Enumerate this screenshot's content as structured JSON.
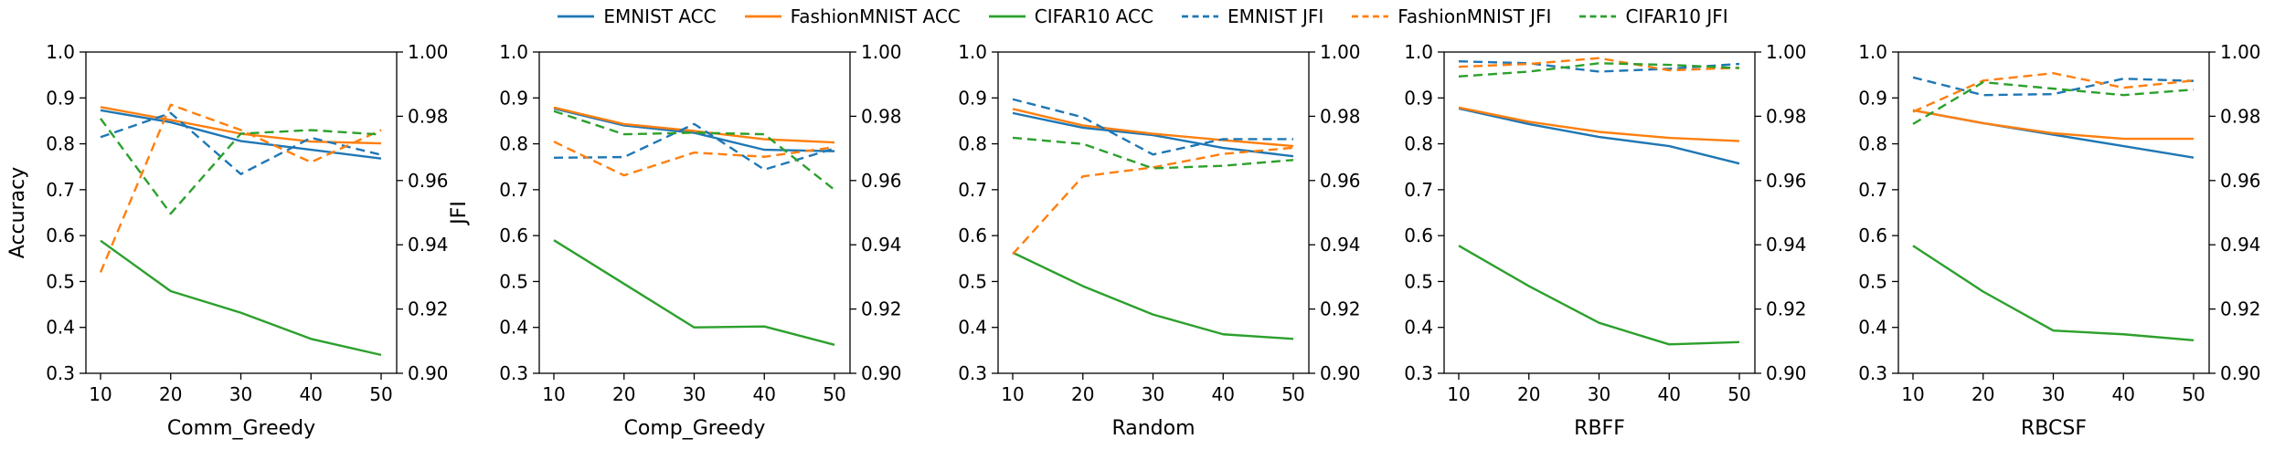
{
  "figure": {
    "background": "#ffffff",
    "colors": {
      "blue": "#1f77b4",
      "orange": "#ff7f0e",
      "green": "#2ca02c"
    }
  },
  "legend": {
    "entries": [
      {
        "label": "EMNIST ACC",
        "color": "#1f77b4",
        "style": "solid"
      },
      {
        "label": "FashionMNIST ACC",
        "color": "#ff7f0e",
        "style": "solid"
      },
      {
        "label": "CIFAR10 ACC",
        "color": "#2ca02c",
        "style": "solid"
      },
      {
        "label": "EMNIST JFI",
        "color": "#1f77b4",
        "style": "dashed"
      },
      {
        "label": "FashionMNIST JFI",
        "color": "#ff7f0e",
        "style": "dashed"
      },
      {
        "label": "CIFAR10 JFI",
        "color": "#2ca02c",
        "style": "dashed"
      }
    ]
  },
  "chart_data": [
    {
      "type": "line",
      "xlabel": "Comm_Greedy",
      "x": [
        10,
        20,
        30,
        40,
        50
      ],
      "x_tick_labels": [
        "10",
        "20",
        "30",
        "40",
        "50"
      ],
      "left_axis": {
        "label": "Accuracy",
        "range": [
          0.3,
          1.0
        ],
        "ticks": [
          "1.0",
          "0.9",
          "0.8",
          "0.7",
          "0.6",
          "0.5",
          "0.4",
          "0.3"
        ]
      },
      "right_axis": {
        "label": "JFI",
        "range": [
          0.9,
          1.0
        ],
        "ticks": [
          "1.00",
          "0.98",
          "0.96",
          "0.94",
          "0.92",
          "0.90"
        ]
      },
      "grid": false,
      "series": [
        {
          "name": "EMNIST ACC",
          "axis": "left",
          "color": "#1f77b4",
          "style": "solid",
          "values": [
            0.873,
            0.847,
            0.806,
            0.787,
            0.768
          ]
        },
        {
          "name": "FashionMNIST ACC",
          "axis": "left",
          "color": "#ff7f0e",
          "style": "solid",
          "values": [
            0.88,
            0.852,
            0.822,
            0.805,
            0.801
          ]
        },
        {
          "name": "CIFAR10 ACC",
          "axis": "left",
          "color": "#2ca02c",
          "style": "solid",
          "values": [
            0.589,
            0.479,
            0.432,
            0.375,
            0.34
          ]
        },
        {
          "name": "EMNIST JFI",
          "axis": "right",
          "color": "#1f77b4",
          "style": "dashed",
          "values": [
            0.9735,
            0.981,
            0.962,
            0.9733,
            0.968
          ]
        },
        {
          "name": "FashionMNIST JFI",
          "axis": "right",
          "color": "#ff7f0e",
          "style": "dashed",
          "values": [
            0.9314,
            0.9836,
            0.9757,
            0.9657,
            0.9757
          ]
        },
        {
          "name": "CIFAR10 JFI",
          "axis": "right",
          "color": "#2ca02c",
          "style": "dashed",
          "values": [
            0.9793,
            0.9497,
            0.9746,
            0.9757,
            0.9743
          ]
        }
      ]
    },
    {
      "type": "line",
      "xlabel": "Comp_Greedy",
      "x": [
        10,
        20,
        30,
        40,
        50
      ],
      "x_tick_labels": [
        "10",
        "20",
        "30",
        "40",
        "50"
      ],
      "left_axis": {
        "label": "",
        "range": [
          0.3,
          1.0
        ],
        "ticks": [
          "1.0",
          "0.9",
          "0.8",
          "0.7",
          "0.6",
          "0.5",
          "0.4",
          "0.3"
        ]
      },
      "right_axis": {
        "label": "",
        "range": [
          0.9,
          1.0
        ],
        "ticks": [
          "1.00",
          "0.98",
          "0.96",
          "0.94",
          "0.92",
          "0.90"
        ]
      },
      "grid": false,
      "series": [
        {
          "name": "EMNIST ACC",
          "axis": "left",
          "color": "#1f77b4",
          "style": "solid",
          "values": [
            0.877,
            0.84,
            0.824,
            0.787,
            0.784
          ]
        },
        {
          "name": "FashionMNIST ACC",
          "axis": "left",
          "color": "#ff7f0e",
          "style": "solid",
          "values": [
            0.879,
            0.843,
            0.828,
            0.81,
            0.803
          ]
        },
        {
          "name": "CIFAR10 ACC",
          "axis": "left",
          "color": "#2ca02c",
          "style": "solid",
          "values": [
            0.59,
            0.495,
            0.4,
            0.402,
            0.362
          ]
        },
        {
          "name": "EMNIST JFI",
          "axis": "right",
          "color": "#1f77b4",
          "style": "dashed",
          "values": [
            0.9671,
            0.9673,
            0.9776,
            0.9634,
            0.97
          ]
        },
        {
          "name": "FashionMNIST JFI",
          "axis": "right",
          "color": "#ff7f0e",
          "style": "dashed",
          "values": [
            0.9721,
            0.9616,
            0.9687,
            0.9674,
            0.9704
          ]
        },
        {
          "name": "CIFAR10 JFI",
          "axis": "right",
          "color": "#2ca02c",
          "style": "dashed",
          "values": [
            0.9816,
            0.9744,
            0.9749,
            0.9744,
            0.9571
          ]
        }
      ]
    },
    {
      "type": "line",
      "xlabel": "Random",
      "x": [
        10,
        20,
        30,
        40,
        50
      ],
      "x_tick_labels": [
        "10",
        "20",
        "30",
        "40",
        "50"
      ],
      "left_axis": {
        "label": "",
        "range": [
          0.3,
          1.0
        ],
        "ticks": [
          "1.0",
          "0.9",
          "0.8",
          "0.7",
          "0.6",
          "0.5",
          "0.4",
          "0.3"
        ]
      },
      "right_axis": {
        "label": "",
        "range": [
          0.9,
          1.0
        ],
        "ticks": [
          "1.00",
          "0.98",
          "0.96",
          "0.94",
          "0.92",
          "0.90"
        ]
      },
      "grid": false,
      "series": [
        {
          "name": "EMNIST ACC",
          "axis": "left",
          "color": "#1f77b4",
          "style": "solid",
          "values": [
            0.867,
            0.835,
            0.819,
            0.791,
            0.773
          ]
        },
        {
          "name": "FashionMNIST ACC",
          "axis": "left",
          "color": "#ff7f0e",
          "style": "solid",
          "values": [
            0.876,
            0.84,
            0.822,
            0.808,
            0.795
          ]
        },
        {
          "name": "CIFAR10 ACC",
          "axis": "left",
          "color": "#2ca02c",
          "style": "solid",
          "values": [
            0.563,
            0.49,
            0.428,
            0.385,
            0.375
          ]
        },
        {
          "name": "EMNIST JFI",
          "axis": "right",
          "color": "#1f77b4",
          "style": "dashed",
          "values": [
            0.9853,
            0.9797,
            0.9681,
            0.9729,
            0.9729
          ]
        },
        {
          "name": "FashionMNIST JFI",
          "axis": "right",
          "color": "#ff7f0e",
          "style": "dashed",
          "values": [
            0.9371,
            0.9613,
            0.9641,
            0.9683,
            0.9702
          ]
        },
        {
          "name": "CIFAR10 JFI",
          "axis": "right",
          "color": "#2ca02c",
          "style": "dashed",
          "values": [
            0.9733,
            0.9714,
            0.9638,
            0.9646,
            0.9664
          ]
        }
      ]
    },
    {
      "type": "line",
      "xlabel": "RBFF",
      "x": [
        10,
        20,
        30,
        40,
        50
      ],
      "x_tick_labels": [
        "10",
        "20",
        "30",
        "40",
        "50"
      ],
      "left_axis": {
        "label": "",
        "range": [
          0.3,
          1.0
        ],
        "ticks": [
          "1.0",
          "0.9",
          "0.8",
          "0.7",
          "0.6",
          "0.5",
          "0.4",
          "0.3"
        ]
      },
      "right_axis": {
        "label": "",
        "range": [
          0.9,
          1.0
        ],
        "ticks": [
          "1.00",
          "0.98",
          "0.96",
          "0.94",
          "0.92",
          "0.90"
        ]
      },
      "grid": false,
      "series": [
        {
          "name": "EMNIST ACC",
          "axis": "left",
          "color": "#1f77b4",
          "style": "solid",
          "values": [
            0.877,
            0.843,
            0.815,
            0.795,
            0.757
          ]
        },
        {
          "name": "FashionMNIST ACC",
          "axis": "left",
          "color": "#ff7f0e",
          "style": "solid",
          "values": [
            0.879,
            0.848,
            0.826,
            0.813,
            0.806
          ]
        },
        {
          "name": "CIFAR10 ACC",
          "axis": "left",
          "color": "#2ca02c",
          "style": "solid",
          "values": [
            0.578,
            0.49,
            0.41,
            0.363,
            0.368
          ]
        },
        {
          "name": "EMNIST JFI",
          "axis": "right",
          "color": "#1f77b4",
          "style": "dashed",
          "values": [
            0.9971,
            0.9965,
            0.9939,
            0.9948,
            0.9963
          ]
        },
        {
          "name": "FashionMNIST JFI",
          "axis": "right",
          "color": "#ff7f0e",
          "style": "dashed",
          "values": [
            0.9954,
            0.9963,
            0.9981,
            0.9943,
            0.9951
          ]
        },
        {
          "name": "CIFAR10 JFI",
          "axis": "right",
          "color": "#2ca02c",
          "style": "dashed",
          "values": [
            0.9924,
            0.9939,
            0.9965,
            0.996,
            0.995
          ]
        }
      ]
    },
    {
      "type": "line",
      "xlabel": "RBCSF",
      "x": [
        10,
        20,
        30,
        40,
        50
      ],
      "x_tick_labels": [
        "10",
        "20",
        "30",
        "40",
        "50"
      ],
      "left_axis": {
        "label": "",
        "range": [
          0.3,
          1.0
        ],
        "ticks": [
          "1.0",
          "0.9",
          "0.8",
          "0.7",
          "0.6",
          "0.5",
          "0.4",
          "0.3"
        ]
      },
      "right_axis": {
        "label": "",
        "range": [
          0.9,
          1.0
        ],
        "ticks": [
          "1.00",
          "0.98",
          "0.96",
          "0.94",
          "0.92",
          "0.90"
        ]
      },
      "grid": false,
      "series": [
        {
          "name": "EMNIST ACC",
          "axis": "left",
          "color": "#1f77b4",
          "style": "solid",
          "values": [
            0.873,
            0.845,
            0.82,
            0.795,
            0.77
          ]
        },
        {
          "name": "FashionMNIST ACC",
          "axis": "left",
          "color": "#ff7f0e",
          "style": "solid",
          "values": [
            0.873,
            0.845,
            0.823,
            0.811,
            0.811
          ]
        },
        {
          "name": "CIFAR10 ACC",
          "axis": "left",
          "color": "#2ca02c",
          "style": "solid",
          "values": [
            0.578,
            0.478,
            0.393,
            0.385,
            0.372
          ]
        },
        {
          "name": "EMNIST JFI",
          "axis": "right",
          "color": "#1f77b4",
          "style": "dashed",
          "values": [
            0.9921,
            0.9866,
            0.9869,
            0.9917,
            0.991
          ]
        },
        {
          "name": "FashionMNIST JFI",
          "axis": "right",
          "color": "#ff7f0e",
          "style": "dashed",
          "values": [
            0.9814,
            0.9911,
            0.9934,
            0.9889,
            0.9911
          ]
        },
        {
          "name": "CIFAR10 JFI",
          "axis": "right",
          "color": "#2ca02c",
          "style": "dashed",
          "values": [
            0.9776,
            0.9906,
            0.9886,
            0.9866,
            0.9883
          ]
        }
      ]
    }
  ]
}
